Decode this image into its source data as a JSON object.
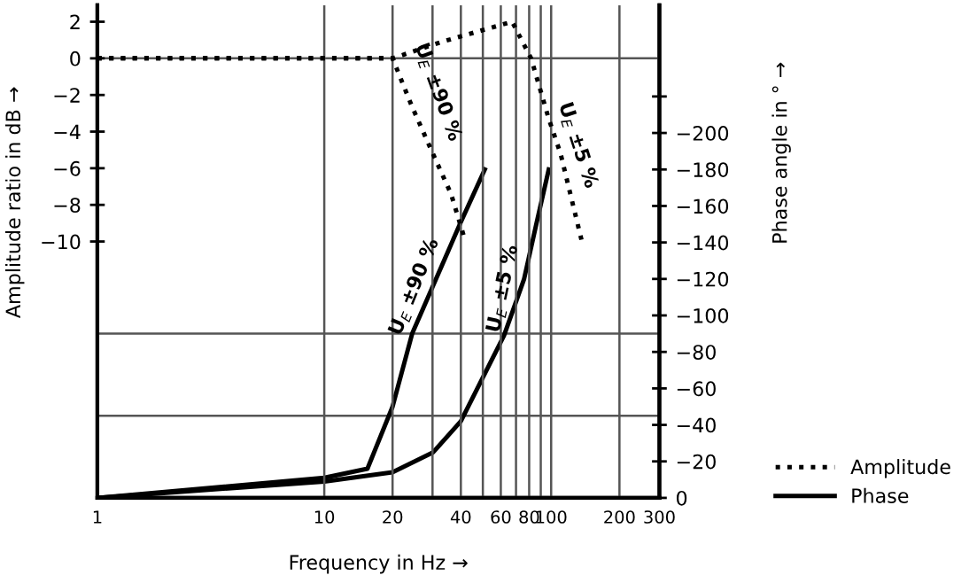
{
  "chart_data": {
    "type": "line",
    "xlabel": "Frequency in Hz →",
    "ylabel": "Amplitude ratio in dB →",
    "y2label": "Phase angle in ° →",
    "log": "x",
    "xlim": [
      1,
      300
    ],
    "xticks": [
      1,
      10,
      20,
      {
        "value": 30,
        "label": null
      },
      40,
      {
        "value": 50,
        "label": null
      },
      60,
      {
        "value": 70,
        "label": null
      },
      80,
      {
        "value": 90,
        "label": null
      },
      100,
      200,
      300
    ],
    "ylim": [
      -24,
      2.9
    ],
    "yticks": [
      2,
      0,
      -2,
      -4,
      -6,
      -8,
      -10
    ],
    "y2lim": [
      0,
      -270
    ],
    "y2ticks": [
      0,
      -20,
      -40,
      -60,
      -80,
      -100,
      -120,
      -140,
      -160,
      -180,
      -200,
      {
        "value": -220,
        "label": null
      }
    ],
    "grid": "x",
    "legend": "bottom right",
    "series": [
      {
        "name": "Amplitude",
        "color": "#000000",
        "line_style": "dotted",
        "x": [
          1,
          20,
          24.3,
          30.1,
          36.2,
          41.9
        ],
        "values": [
          0,
          0,
          -2.6,
          -5.2,
          -7.4,
          -10
        ]
      },
      {
        "color": "#000000",
        "line_style": "dotted",
        "x": [
          1,
          20,
          32.9,
          67.3,
          81.6,
          97.6,
          110,
          136
        ],
        "values": [
          0,
          0,
          0.9,
          2,
          0,
          -3.3,
          -5.2,
          -9.9
        ]
      },
      {
        "name": "Phase",
        "color": "#000000",
        "line_style": "solid",
        "axis": "y2",
        "x": [
          1,
          10,
          15.5,
          20,
          24.4,
          39.6,
          51
        ],
        "values": [
          0,
          -11,
          -16,
          -50,
          -90,
          -150,
          -180
        ]
      },
      {
        "color": "#000000",
        "line_style": "solid",
        "axis": "y2",
        "x": [
          1,
          10,
          20,
          30.2,
          40,
          62,
          76,
          86,
          97.6
        ],
        "values": [
          0,
          -9,
          -14,
          -25,
          -42,
          -89,
          -120,
          -150,
          -180
        ]
      }
    ],
    "ref_lines": [
      {
        "axis": "y",
        "value": 0,
        "color": "#555555"
      },
      {
        "axis": "y2",
        "value": -45,
        "color": "#555555"
      },
      {
        "axis": "y2",
        "value": -90,
        "color": "#555555"
      }
    ],
    "annotations": [
      "U$_{E}$ ±90 %",
      "U$_{E}$ ±5 %",
      "U$_{E}$ ±90 %",
      "U$_{E}$ ±5 %"
    ]
  }
}
